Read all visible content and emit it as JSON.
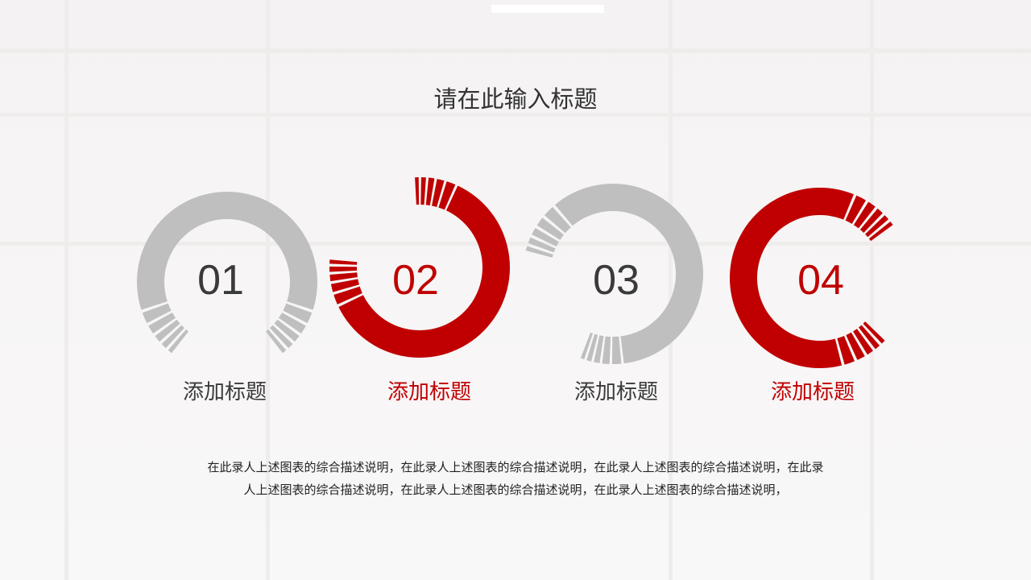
{
  "slide": {
    "title": "请在此输入标题",
    "items": [
      {
        "number": "01",
        "label": "添加标题",
        "color": "#bfbfbf",
        "text_color": "#3a3a3a"
      },
      {
        "number": "02",
        "label": "添加标题",
        "color": "#c00000",
        "text_color": "#c00000"
      },
      {
        "number": "03",
        "label": "添加标题",
        "color": "#bfbfbf",
        "text_color": "#3a3a3a"
      },
      {
        "number": "04",
        "label": "添加标题",
        "color": "#c00000",
        "text_color": "#c00000"
      }
    ],
    "description": [
      "在此录人上述图表的综合描述说明，在此录人上述图表的综合描述说明，在此录人上述图表的综合描述说明，在此录",
      "人上述图表的综合描述说明，在此录人上述图表的综合描述说明，在此录人上述图表的综合描述说明，"
    ]
  }
}
